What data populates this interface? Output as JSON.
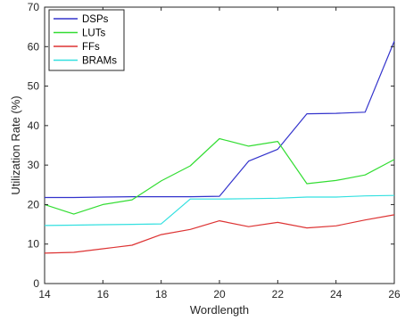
{
  "chart_data": {
    "type": "line",
    "title": "",
    "xlabel": "Wordlength",
    "ylabel": "Utilization Rate (%)",
    "xlim": [
      14,
      26
    ],
    "ylim": [
      0,
      70
    ],
    "x_ticks": [
      14,
      16,
      18,
      20,
      22,
      24,
      26
    ],
    "y_ticks": [
      0,
      10,
      20,
      30,
      40,
      50,
      60,
      70
    ],
    "grid": false,
    "legend_position": "top-left",
    "x": [
      14,
      15,
      16,
      17,
      18,
      19,
      20,
      21,
      22,
      23,
      24,
      25,
      26
    ],
    "series": [
      {
        "name": "DSPs",
        "color": "#3333cc",
        "values": [
          21.8,
          21.8,
          21.9,
          22.0,
          22.0,
          22.0,
          22.1,
          31.0,
          34.0,
          43.0,
          43.1,
          43.4,
          61.4
        ]
      },
      {
        "name": "LUTs",
        "color": "#33dd33",
        "values": [
          20.0,
          17.6,
          20.0,
          21.2,
          26.0,
          29.8,
          36.7,
          34.8,
          36.0,
          25.3,
          26.1,
          27.5,
          31.4
        ]
      },
      {
        "name": "FFs",
        "color": "#dd3333",
        "values": [
          7.7,
          7.9,
          8.8,
          9.7,
          12.4,
          13.7,
          15.9,
          14.4,
          15.5,
          14.1,
          14.6,
          16.1,
          17.4
        ]
      },
      {
        "name": "BRAMs",
        "color": "#33e0e0",
        "values": [
          14.7,
          14.8,
          14.9,
          15.0,
          15.1,
          21.4,
          21.4,
          21.5,
          21.6,
          21.9,
          21.9,
          22.2,
          22.3
        ]
      }
    ]
  }
}
